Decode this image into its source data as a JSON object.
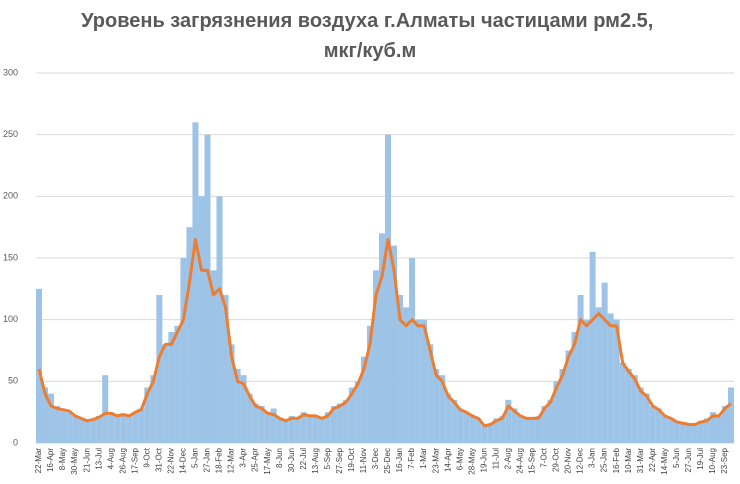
{
  "chart_data": {
    "type": "bar_line",
    "title": [
      "Уровень загрязнения воздуха г.Алматы частицами рм2.5,",
      "мкг/куб.м"
    ],
    "categories": [
      "22-Mar",
      null,
      "16-Apr",
      null,
      "8-May",
      null,
      "30-May",
      null,
      "21-Jun",
      null,
      "13-Jul",
      null,
      "4-Aug",
      null,
      "26-Aug",
      null,
      "17-Sep",
      null,
      "9-Oct",
      null,
      "31-Oct",
      null,
      "22-Nov",
      null,
      "14-Dec",
      null,
      "5-Jan",
      null,
      "27-Jan",
      null,
      "18-Feb",
      null,
      "12-Mar",
      null,
      "3-Apr",
      null,
      "25-Apr",
      null,
      "17-May",
      null,
      "8-Jun",
      null,
      "30-Jun",
      null,
      "22-Jul",
      null,
      "13-Aug",
      null,
      "5-Sep",
      null,
      "27-Sep",
      null,
      "19-Oct",
      null,
      "11-Nov",
      null,
      "3-Dec",
      null,
      "25-Dec",
      null,
      "16-Jan",
      null,
      "7-Feb",
      null,
      "1-Mar",
      null,
      "23-Mar",
      null,
      "14-Apr",
      null,
      "6-May",
      null,
      "28-May",
      null,
      "19-Jun",
      null,
      "11-Jul",
      null,
      "2-Aug",
      null,
      "24-Aug",
      null,
      "15-Sep",
      null,
      "7-Oct",
      null,
      "29-Oct",
      null,
      "20-Nov",
      null,
      "12-Dec",
      null,
      "3-Jan",
      null,
      "25-Jan",
      null,
      "16-Feb",
      null,
      "10-Mar",
      null,
      "31-Mar",
      null,
      "22-Apr",
      null,
      "14-May",
      null,
      "5-Jun",
      null,
      "27-Jun",
      null,
      "19-Jul",
      null,
      "10-Aug",
      null,
      "23-Sep",
      null
    ],
    "series": [
      {
        "type": "bar",
        "color": "#9dc3e6",
        "values": [
          125,
          45,
          40,
          30,
          28,
          25,
          22,
          20,
          18,
          20,
          22,
          55,
          25,
          22,
          24,
          22,
          25,
          28,
          45,
          55,
          120,
          80,
          90,
          95,
          150,
          175,
          260,
          200,
          250,
          140,
          200,
          120,
          80,
          60,
          55,
          40,
          32,
          30,
          25,
          28,
          20,
          18,
          22,
          20,
          25,
          22,
          22,
          20,
          25,
          30,
          32,
          35,
          45,
          50,
          70,
          95,
          140,
          170,
          250,
          160,
          120,
          110,
          150,
          100,
          100,
          80,
          60,
          55,
          40,
          35,
          28,
          25,
          22,
          20,
          14,
          15,
          20,
          22,
          35,
          28,
          22,
          20,
          20,
          22,
          30,
          35,
          50,
          60,
          75,
          90,
          120,
          100,
          155,
          110,
          130,
          105,
          100,
          65,
          60,
          55,
          45,
          40,
          30,
          28,
          22,
          20,
          18,
          17,
          16,
          15,
          18,
          20,
          25,
          22,
          30,
          45
        ]
      },
      {
        "type": "line",
        "color": "#ed7d31",
        "values": [
          60,
          40,
          30,
          28,
          27,
          26,
          22,
          20,
          18,
          19,
          21,
          24,
          24,
          22,
          23,
          22,
          25,
          27,
          40,
          50,
          70,
          80,
          80,
          90,
          100,
          130,
          165,
          140,
          140,
          120,
          125,
          110,
          70,
          50,
          48,
          38,
          30,
          28,
          24,
          23,
          20,
          18,
          20,
          20,
          23,
          22,
          22,
          20,
          22,
          28,
          30,
          33,
          40,
          48,
          60,
          80,
          120,
          135,
          165,
          140,
          100,
          95,
          100,
          95,
          95,
          75,
          55,
          50,
          38,
          33,
          27,
          25,
          22,
          20,
          14,
          15,
          18,
          20,
          30,
          26,
          22,
          20,
          20,
          20,
          28,
          33,
          45,
          55,
          70,
          80,
          100,
          95,
          100,
          105,
          100,
          95,
          95,
          65,
          58,
          52,
          42,
          38,
          30,
          27,
          22,
          20,
          17,
          16,
          15,
          15,
          17,
          18,
          22,
          22,
          28,
          32
        ]
      }
    ],
    "ylim": [
      0,
      300
    ],
    "yticks": [
      0,
      50,
      100,
      150,
      200,
      250,
      300
    ],
    "grid": true
  }
}
